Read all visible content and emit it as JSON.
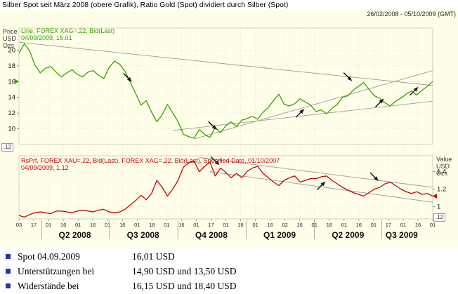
{
  "title": "Silber Spot seit März 2008 (obere Grafik), Ratio Gold (Spot) dividiert durch Silber (Spot)",
  "date_range": "26/02/2008 - 05/10/2009 (GMT)",
  "colors": {
    "background": "#ffffe9",
    "silver_line": "#3aa000",
    "ratio_line": "#cc0000",
    "trendline": "#9a9a9a",
    "arrow": "#1a1a1a",
    "grid": "#d9d9c8",
    "bullet": "#2633b0"
  },
  "chart_data": [
    {
      "type": "line",
      "name": "silver-spot",
      "legend": [
        "Line, FOREX XAG=,22, Bid(Last)",
        "04/09/2009, 16.01"
      ],
      "axis_side": "left",
      "axis_title": [
        "Price",
        "USD",
        "Ozs"
      ],
      "y_ticks": [
        20,
        18,
        16,
        14,
        12,
        10
      ],
      "ylim": [
        8.0,
        22.8
      ],
      "decimal_badge": ".12",
      "last_value": 16.01,
      "values": [
        19.6,
        20.8,
        19.9,
        18.1,
        17.1,
        17.7,
        17.9,
        17.2,
        16.6,
        17.1,
        17.5,
        16.9,
        16.6,
        17.2,
        17.4,
        16.8,
        16.4,
        17.8,
        18.6,
        18.2,
        17.3,
        15.9,
        14.5,
        13.0,
        13.6,
        12.1,
        10.9,
        11.8,
        13.1,
        12.0,
        10.9,
        9.3,
        9.0,
        8.8,
        9.9,
        9.3,
        8.9,
        10.2,
        9.5,
        10.4,
        10.9,
        10.3,
        11.1,
        11.3,
        11.6,
        11.2,
        12.1,
        12.7,
        13.6,
        14.4,
        13.1,
        12.9,
        13.2,
        13.8,
        13.4,
        13.0,
        12.2,
        12.4,
        11.9,
        12.6,
        13.1,
        14.0,
        14.2,
        14.9,
        15.4,
        15.9,
        15.0,
        14.2,
        13.9,
        13.3,
        12.9,
        13.5,
        13.9,
        14.4,
        14.8,
        14.3,
        14.9,
        15.4,
        16.01
      ],
      "trendlines": [
        [
          [
            0,
            21.0
          ],
          [
            78,
            15.5
          ]
        ],
        [
          [
            33,
            8.7
          ],
          [
            78,
            17.4
          ]
        ],
        [
          [
            29,
            9.8
          ],
          [
            78,
            13.5
          ]
        ]
      ],
      "arrows": [
        {
          "x": 20.5,
          "y": 16.5,
          "dir": "se"
        },
        {
          "x": 36.5,
          "y": 10.4,
          "dir": "se"
        },
        {
          "x": 53,
          "y": 12.0,
          "dir": "ne"
        },
        {
          "x": 62,
          "y": 16.6,
          "dir": "se"
        },
        {
          "x": 68,
          "y": 13.3,
          "dir": "ne"
        },
        {
          "x": 74.5,
          "y": 14.8,
          "dir": "ne"
        }
      ]
    },
    {
      "type": "line",
      "name": "gold-silver-ratio",
      "legend": [
        "RsPrf, FOREX XAU=,22, Bid(Last), FOREX XAG=,22, Bid(Last), Specified Date,,01/10/2007",
        "04/09/2009, 1.12"
      ],
      "axis_side": "right",
      "axis_title": [
        "Value",
        "USD",
        "Ozs"
      ],
      "y_ticks": [
        1.4,
        1.2,
        1
      ],
      "ylim": [
        0.86,
        1.58
      ],
      "decimal_badge": ".12",
      "last_value": 1.12,
      "values": [
        0.9,
        0.88,
        0.91,
        0.93,
        0.94,
        0.93,
        0.92,
        0.95,
        0.95,
        0.94,
        0.93,
        0.95,
        0.96,
        0.95,
        0.94,
        0.96,
        0.97,
        0.94,
        0.93,
        0.94,
        0.97,
        1.02,
        1.07,
        1.13,
        1.08,
        1.15,
        1.3,
        1.22,
        1.12,
        1.2,
        1.3,
        1.45,
        1.5,
        1.52,
        1.4,
        1.46,
        1.51,
        1.35,
        1.44,
        1.39,
        1.33,
        1.38,
        1.33,
        1.4,
        1.44,
        1.46,
        1.38,
        1.33,
        1.28,
        1.24,
        1.3,
        1.33,
        1.35,
        1.28,
        1.3,
        1.32,
        1.32,
        1.34,
        1.35,
        1.3,
        1.26,
        1.22,
        1.19,
        1.16,
        1.14,
        1.12,
        1.16,
        1.2,
        1.22,
        1.26,
        1.28,
        1.24,
        1.2,
        1.17,
        1.15,
        1.17,
        1.14,
        1.15,
        1.12
      ],
      "trendlines": [
        [
          [
            34,
            1.56
          ],
          [
            78,
            1.22
          ]
        ],
        [
          [
            36,
            1.4
          ],
          [
            78,
            1.05
          ]
        ]
      ],
      "arrows": [
        {
          "x": 37,
          "y": 1.52,
          "dir": "se"
        },
        {
          "x": 57,
          "y": 1.24,
          "dir": "ne"
        },
        {
          "x": 67,
          "y": 1.34,
          "dir": "se"
        }
      ]
    }
  ],
  "x_axis": {
    "tick_labels": [
      "03",
      "17",
      "01",
      "16",
      "01",
      "16",
      "01",
      "16",
      "01",
      "18",
      "01",
      "16",
      "01",
      "17",
      "01",
      "16",
      "01",
      "16",
      "02",
      "16",
      "01",
      "18",
      "01",
      "16",
      "01",
      "17",
      "01",
      "16",
      "01"
    ],
    "quarter_labels": [
      "Q2 2008",
      "Q3 2008",
      "Q4 2008",
      "Q1 2009",
      "Q2 2009",
      "Q3 2009"
    ],
    "quarter_centers": [
      0.135,
      0.3,
      0.465,
      0.63,
      0.795,
      0.925
    ],
    "quarter_bounds": [
      0.055,
      0.218,
      0.384,
      0.549,
      0.714,
      0.877
    ]
  },
  "summary": {
    "rows": [
      {
        "label": "Spot 04.09.2009",
        "value": "16,01 USD"
      },
      {
        "label": "Unterstützungen bei",
        "value": "14,90 USD und 13,50 USD"
      },
      {
        "label": "Widerstände bei",
        "value": "16,15 USD und 18,40 USD"
      }
    ]
  }
}
